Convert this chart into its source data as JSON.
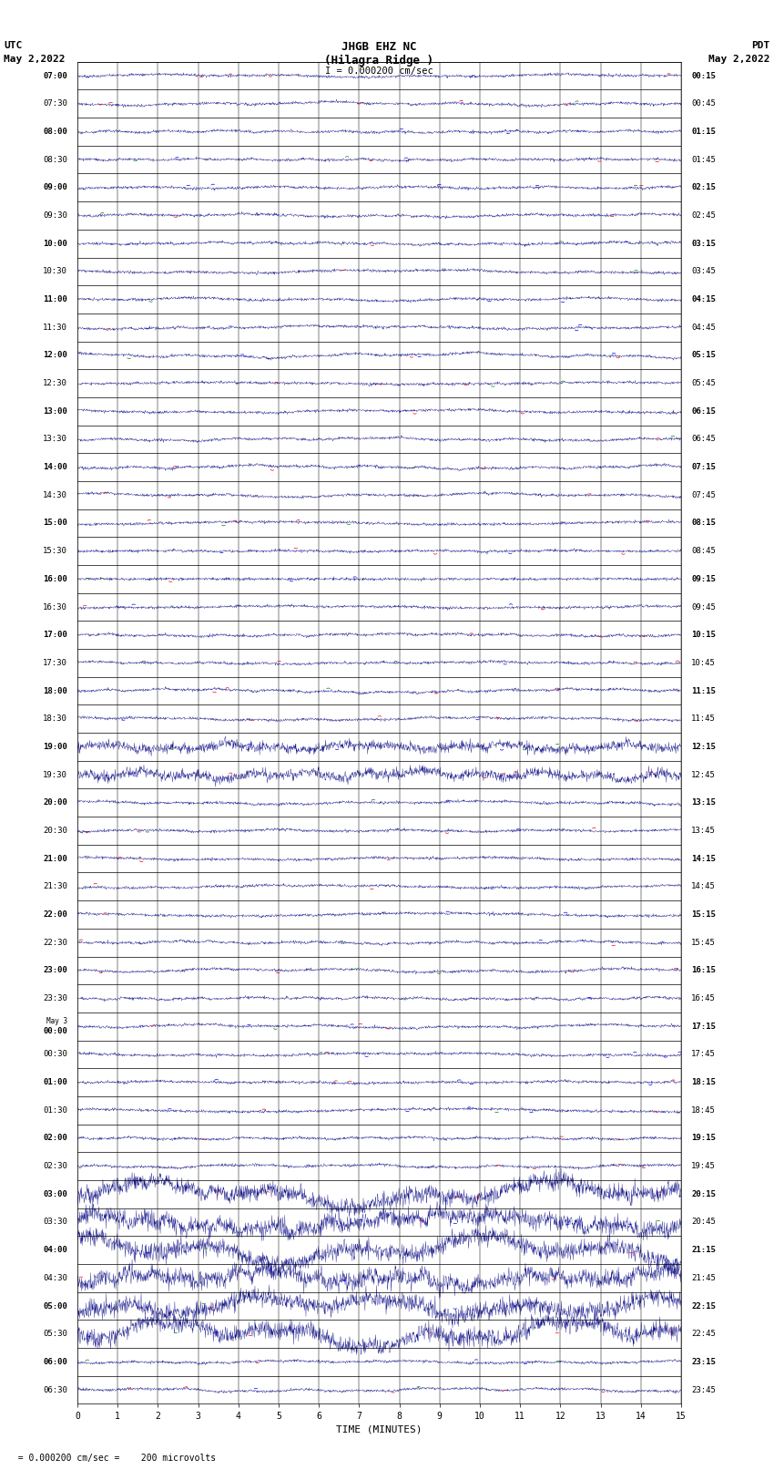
{
  "title_line1": "JHGB EHZ NC",
  "title_line2": "(Hilagra Ridge )",
  "scale_label": "I = 0.000200 cm/sec",
  "left_label_top": "UTC",
  "left_label_date": "May 2,2022",
  "right_label_top": "PDT",
  "right_label_date": "May 2,2022",
  "bottom_label": "TIME (MINUTES)",
  "bottom_note": "  = 0.000200 cm/sec =    200 microvolts",
  "utc_times": [
    "07:00",
    "07:30",
    "08:00",
    "08:30",
    "09:00",
    "09:30",
    "10:00",
    "10:30",
    "11:00",
    "11:30",
    "12:00",
    "12:30",
    "13:00",
    "13:30",
    "14:00",
    "14:30",
    "15:00",
    "15:30",
    "16:00",
    "16:30",
    "17:00",
    "17:30",
    "18:00",
    "18:30",
    "19:00",
    "19:30",
    "20:00",
    "20:30",
    "21:00",
    "21:30",
    "22:00",
    "22:30",
    "23:00",
    "23:30",
    "May 3\n00:00",
    "00:30",
    "01:00",
    "01:30",
    "02:00",
    "02:30",
    "03:00",
    "03:30",
    "04:00",
    "04:30",
    "05:00",
    "05:30",
    "06:00",
    "06:30"
  ],
  "pdt_times": [
    "00:15",
    "00:45",
    "01:15",
    "01:45",
    "02:15",
    "02:45",
    "03:15",
    "03:45",
    "04:15",
    "04:45",
    "05:15",
    "05:45",
    "06:15",
    "06:45",
    "07:15",
    "07:45",
    "08:15",
    "08:45",
    "09:15",
    "09:45",
    "10:15",
    "10:45",
    "11:15",
    "11:45",
    "12:15",
    "12:45",
    "13:15",
    "13:45",
    "14:15",
    "14:45",
    "15:15",
    "15:45",
    "16:15",
    "16:45",
    "17:15",
    "17:45",
    "18:15",
    "18:45",
    "19:15",
    "19:45",
    "20:15",
    "20:45",
    "21:15",
    "21:45",
    "22:15",
    "22:45",
    "23:15",
    "23:45"
  ],
  "n_rows": 48,
  "n_minutes": 15,
  "x_ticks": [
    0,
    1,
    2,
    3,
    4,
    5,
    6,
    7,
    8,
    9,
    10,
    11,
    12,
    13,
    14,
    15
  ],
  "background_color": "#ffffff",
  "line_color_main": "#000080",
  "noise_color_red": "#ff0000",
  "noise_color_blue": "#0000ff",
  "noise_color_green": "#008000",
  "grid_color": "#000000",
  "label_color": "#000000",
  "elevated_rows": [
    24,
    25,
    40,
    41,
    42,
    43,
    44,
    45
  ],
  "high_amp_rows": [
    40,
    41,
    42,
    43,
    44,
    45
  ]
}
